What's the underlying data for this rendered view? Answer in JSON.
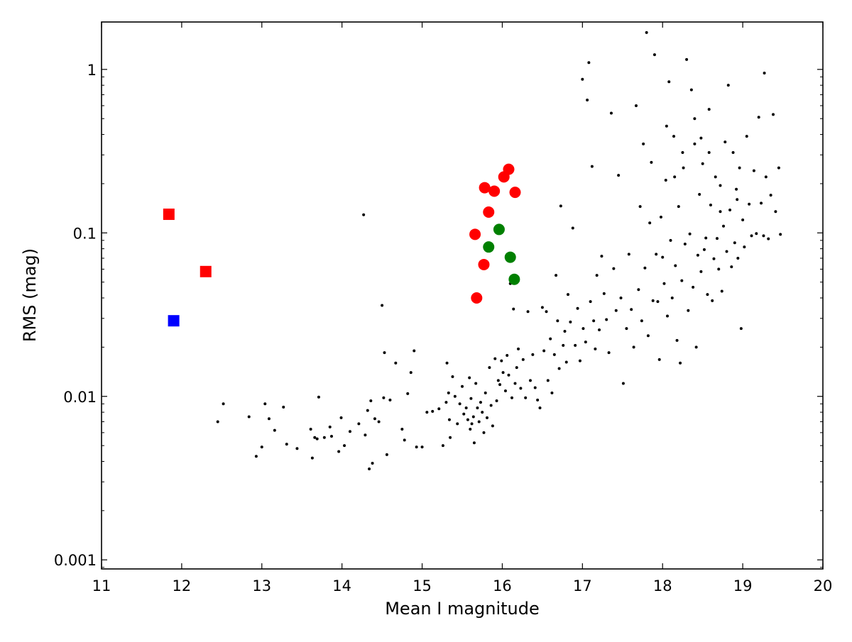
{
  "chart_data": {
    "type": "scatter",
    "xlabel": "Mean I magnitude",
    "ylabel": "RMS (mag)",
    "xlim": [
      11,
      20
    ],
    "ylim": [
      0.00088,
      1.95
    ],
    "yscale": "log",
    "grid": false,
    "x_ticks": [
      {
        "value": 11,
        "label": "11"
      },
      {
        "value": 12,
        "label": "12"
      },
      {
        "value": 13,
        "label": "13"
      },
      {
        "value": 14,
        "label": "14"
      },
      {
        "value": 15,
        "label": "15"
      },
      {
        "value": 16,
        "label": "16"
      },
      {
        "value": 17,
        "label": "17"
      },
      {
        "value": 18,
        "label": "18"
      },
      {
        "value": 19,
        "label": "19"
      },
      {
        "value": 20,
        "label": "20"
      }
    ],
    "y_ticks": [
      {
        "value": 0.001,
        "label": "0.001"
      },
      {
        "value": 0.01,
        "label": "0.01"
      },
      {
        "value": 0.1,
        "label": "0.1"
      },
      {
        "value": 1,
        "label": "1"
      }
    ],
    "field_stars": {
      "color": "#000000",
      "points": [
        [
          12.45,
          0.007
        ],
        [
          12.52,
          0.009
        ],
        [
          12.84,
          0.0075
        ],
        [
          12.93,
          0.0043
        ],
        [
          13.0,
          0.0049
        ],
        [
          13.04,
          0.009
        ],
        [
          13.09,
          0.0073
        ],
        [
          13.16,
          0.0062
        ],
        [
          13.27,
          0.0086
        ],
        [
          13.31,
          0.0051
        ],
        [
          13.44,
          0.0048
        ],
        [
          13.61,
          0.0063
        ],
        [
          13.63,
          0.0042
        ],
        [
          13.66,
          0.0056
        ],
        [
          13.69,
          0.0055
        ],
        [
          13.71,
          0.0099
        ],
        [
          13.78,
          0.0056
        ],
        [
          13.85,
          0.0065
        ],
        [
          13.87,
          0.0057
        ],
        [
          13.96,
          0.0046
        ],
        [
          13.99,
          0.0074
        ],
        [
          14.03,
          0.005
        ],
        [
          14.1,
          0.0061
        ],
        [
          14.21,
          0.0068
        ],
        [
          14.27,
          0.129
        ],
        [
          14.29,
          0.0058
        ],
        [
          14.32,
          0.0082
        ],
        [
          14.34,
          0.0036
        ],
        [
          14.36,
          0.0094
        ],
        [
          14.38,
          0.0039
        ],
        [
          14.41,
          0.0073
        ],
        [
          14.46,
          0.007
        ],
        [
          14.5,
          0.036
        ],
        [
          14.52,
          0.0098
        ],
        [
          14.53,
          0.0185
        ],
        [
          14.56,
          0.0044
        ],
        [
          14.6,
          0.0095
        ],
        [
          14.67,
          0.016
        ],
        [
          14.75,
          0.0063
        ],
        [
          14.78,
          0.0054
        ],
        [
          14.82,
          0.0104
        ],
        [
          14.86,
          0.014
        ],
        [
          14.9,
          0.019
        ],
        [
          14.93,
          0.0049
        ],
        [
          15.0,
          0.0049
        ],
        [
          15.06,
          0.008
        ],
        [
          15.13,
          0.0081
        ],
        [
          15.21,
          0.0084
        ],
        [
          15.26,
          0.005
        ],
        [
          15.3,
          0.0092
        ],
        [
          15.31,
          0.016
        ],
        [
          15.33,
          0.0105
        ],
        [
          15.34,
          0.0072
        ],
        [
          15.35,
          0.0056
        ],
        [
          15.38,
          0.0132
        ],
        [
          15.41,
          0.01
        ],
        [
          15.44,
          0.0068
        ],
        [
          15.47,
          0.009
        ],
        [
          15.5,
          0.0115
        ],
        [
          15.52,
          0.0078
        ],
        [
          15.55,
          0.0085
        ],
        [
          15.57,
          0.0072
        ],
        [
          15.59,
          0.013
        ],
        [
          15.6,
          0.0063
        ],
        [
          15.61,
          0.0097
        ],
        [
          15.62,
          0.0068
        ],
        [
          15.64,
          0.0075
        ],
        [
          15.65,
          0.0052
        ],
        [
          15.67,
          0.012
        ],
        [
          15.69,
          0.0085
        ],
        [
          15.71,
          0.007
        ],
        [
          15.73,
          0.0092
        ],
        [
          15.75,
          0.008
        ],
        [
          15.77,
          0.006
        ],
        [
          15.79,
          0.0105
        ],
        [
          15.81,
          0.0074
        ],
        [
          15.84,
          0.015
        ],
        [
          15.86,
          0.0088
        ],
        [
          15.88,
          0.0066
        ],
        [
          15.91,
          0.017
        ],
        [
          15.93,
          0.0094
        ],
        [
          15.95,
          0.0125
        ],
        [
          15.97,
          0.0118
        ],
        [
          15.99,
          0.0165
        ],
        [
          16.01,
          0.014
        ],
        [
          16.04,
          0.0108
        ],
        [
          16.06,
          0.0178
        ],
        [
          16.08,
          0.0135
        ],
        [
          16.1,
          0.049
        ],
        [
          16.12,
          0.0098
        ],
        [
          16.14,
          0.0342
        ],
        [
          16.16,
          0.012
        ],
        [
          16.18,
          0.015
        ],
        [
          16.2,
          0.0195
        ],
        [
          16.23,
          0.0112
        ],
        [
          16.26,
          0.0168
        ],
        [
          16.29,
          0.0098
        ],
        [
          16.32,
          0.033
        ],
        [
          16.35,
          0.0125
        ],
        [
          16.38,
          0.018
        ],
        [
          16.41,
          0.0113
        ],
        [
          16.44,
          0.0095
        ],
        [
          16.47,
          0.0085
        ],
        [
          16.5,
          0.035
        ],
        [
          16.52,
          0.019
        ],
        [
          16.55,
          0.033
        ],
        [
          16.57,
          0.0125
        ],
        [
          16.6,
          0.0225
        ],
        [
          16.62,
          0.0105
        ],
        [
          16.65,
          0.018
        ],
        [
          16.67,
          0.055
        ],
        [
          16.69,
          0.029
        ],
        [
          16.71,
          0.0148
        ],
        [
          16.73,
          0.146
        ],
        [
          16.76,
          0.0205
        ],
        [
          16.78,
          0.025
        ],
        [
          16.8,
          0.0162
        ],
        [
          16.82,
          0.042
        ],
        [
          16.85,
          0.0285
        ],
        [
          16.88,
          0.107
        ],
        [
          16.91,
          0.0205
        ],
        [
          16.94,
          0.0345
        ],
        [
          16.97,
          0.0165
        ],
        [
          17.0,
          0.87
        ],
        [
          17.01,
          0.026
        ],
        [
          17.04,
          0.0215
        ],
        [
          17.06,
          0.65
        ],
        [
          17.08,
          1.1
        ],
        [
          17.1,
          0.038
        ],
        [
          17.12,
          0.255
        ],
        [
          17.14,
          0.029
        ],
        [
          17.16,
          0.0195
        ],
        [
          17.18,
          0.055
        ],
        [
          17.21,
          0.0255
        ],
        [
          17.24,
          0.072
        ],
        [
          17.27,
          0.0425
        ],
        [
          17.3,
          0.0295
        ],
        [
          17.33,
          0.0185
        ],
        [
          17.36,
          0.54
        ],
        [
          17.39,
          0.0605
        ],
        [
          17.42,
          0.0335
        ],
        [
          17.45,
          0.225
        ],
        [
          17.48,
          0.04
        ],
        [
          17.51,
          0.012
        ],
        [
          17.55,
          0.026
        ],
        [
          17.58,
          0.074
        ],
        [
          17.61,
          0.034
        ],
        [
          17.64,
          0.02
        ],
        [
          17.67,
          0.6
        ],
        [
          17.7,
          0.045
        ],
        [
          17.72,
          0.145
        ],
        [
          17.74,
          0.029
        ],
        [
          17.76,
          0.35
        ],
        [
          17.78,
          0.061
        ],
        [
          17.8,
          1.68
        ],
        [
          17.82,
          0.0235
        ],
        [
          17.84,
          0.115
        ],
        [
          17.86,
          0.27
        ],
        [
          17.88,
          0.0385
        ],
        [
          17.9,
          1.23
        ],
        [
          17.92,
          0.074
        ],
        [
          17.94,
          0.038
        ],
        [
          17.96,
          0.0168
        ],
        [
          17.98,
          0.125
        ],
        [
          18.0,
          0.071
        ],
        [
          18.02,
          0.049
        ],
        [
          18.04,
          0.21
        ],
        [
          18.06,
          0.031
        ],
        [
          18.08,
          0.84
        ],
        [
          18.1,
          0.09
        ],
        [
          18.12,
          0.04
        ],
        [
          18.14,
          0.39
        ],
        [
          18.16,
          0.063
        ],
        [
          18.18,
          0.022
        ],
        [
          18.2,
          0.145
        ],
        [
          18.22,
          0.016
        ],
        [
          18.24,
          0.051
        ],
        [
          18.26,
          0.25
        ],
        [
          18.28,
          0.0855
        ],
        [
          18.3,
          1.15
        ],
        [
          18.32,
          0.0335
        ],
        [
          18.34,
          0.0985
        ],
        [
          18.36,
          0.75
        ],
        [
          18.38,
          0.0465
        ],
        [
          18.4,
          0.35
        ],
        [
          18.42,
          0.02
        ],
        [
          18.44,
          0.073
        ],
        [
          18.46,
          0.172
        ],
        [
          18.48,
          0.058
        ],
        [
          18.5,
          0.265
        ],
        [
          18.52,
          0.079
        ],
        [
          18.54,
          0.093
        ],
        [
          18.56,
          0.042
        ],
        [
          18.58,
          0.57
        ],
        [
          18.6,
          0.148
        ],
        [
          18.62,
          0.0385
        ],
        [
          18.64,
          0.0695
        ],
        [
          18.66,
          0.22
        ],
        [
          18.68,
          0.0925
        ],
        [
          18.7,
          0.06
        ],
        [
          18.72,
          0.195
        ],
        [
          18.74,
          0.044
        ],
        [
          18.76,
          0.11
        ],
        [
          18.78,
          0.36
        ],
        [
          18.8,
          0.077
        ],
        [
          18.82,
          0.8
        ],
        [
          18.84,
          0.138
        ],
        [
          18.86,
          0.062
        ],
        [
          18.88,
          0.31
        ],
        [
          18.9,
          0.087
        ],
        [
          18.92,
          0.185
        ],
        [
          18.94,
          0.07
        ],
        [
          18.96,
          0.25
        ],
        [
          18.98,
          0.026
        ],
        [
          19.0,
          0.12
        ],
        [
          19.02,
          0.082
        ],
        [
          19.05,
          0.39
        ],
        [
          19.08,
          0.15
        ],
        [
          19.11,
          0.096
        ],
        [
          19.14,
          0.24
        ],
        [
          19.17,
          0.099
        ],
        [
          19.2,
          0.51
        ],
        [
          19.23,
          0.152
        ],
        [
          19.26,
          0.096
        ],
        [
          19.29,
          0.22
        ],
        [
          19.32,
          0.092
        ],
        [
          19.35,
          0.17
        ],
        [
          19.38,
          0.53
        ],
        [
          19.41,
          0.135
        ],
        [
          19.45,
          0.25
        ],
        [
          19.47,
          0.098
        ],
        [
          19.27,
          0.95
        ],
        [
          18.4,
          0.5
        ],
        [
          18.58,
          0.31
        ],
        [
          18.05,
          0.45
        ],
        [
          18.25,
          0.31
        ],
        [
          18.48,
          0.38
        ],
        [
          18.72,
          0.135
        ],
        [
          18.93,
          0.16
        ],
        [
          18.15,
          0.22
        ]
      ]
    },
    "target_stars": {
      "marker": "circle",
      "points": [
        {
          "x": 15.66,
          "y": 0.098,
          "color": "#ff0000"
        },
        {
          "x": 15.68,
          "y": 0.04,
          "color": "#ff0000"
        },
        {
          "x": 15.77,
          "y": 0.064,
          "color": "#ff0000"
        },
        {
          "x": 15.78,
          "y": 0.189,
          "color": "#ff0000"
        },
        {
          "x": 15.83,
          "y": 0.134,
          "color": "#ff0000"
        },
        {
          "x": 15.9,
          "y": 0.18,
          "color": "#ff0000"
        },
        {
          "x": 16.02,
          "y": 0.22,
          "color": "#ff0000"
        },
        {
          "x": 16.08,
          "y": 0.245,
          "color": "#ff0000"
        },
        {
          "x": 16.16,
          "y": 0.177,
          "color": "#ff0000"
        },
        {
          "x": 15.83,
          "y": 0.082,
          "color": "#008000"
        },
        {
          "x": 15.96,
          "y": 0.105,
          "color": "#008000"
        },
        {
          "x": 16.1,
          "y": 0.071,
          "color": "#008000"
        },
        {
          "x": 16.15,
          "y": 0.052,
          "color": "#008000"
        }
      ]
    },
    "bright_stars": {
      "marker": "square",
      "points": [
        {
          "x": 11.84,
          "y": 0.13,
          "color": "#ff0000"
        },
        {
          "x": 12.3,
          "y": 0.058,
          "color": "#ff0000"
        },
        {
          "x": 11.9,
          "y": 0.029,
          "color": "#0000ff"
        }
      ]
    }
  }
}
